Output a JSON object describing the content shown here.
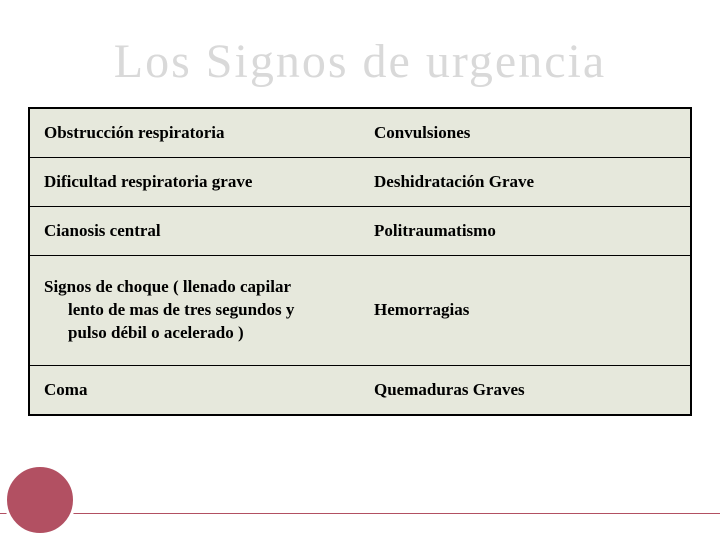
{
  "title": "Los Signos de urgencia",
  "table": {
    "type": "table",
    "background_color": "#e6e8dc",
    "border_color": "#000000",
    "text_color": "#000000",
    "font_weight": 700,
    "font_size_pt": 13,
    "column_widths_pct": [
      50,
      50
    ],
    "rows": [
      [
        "Obstrucción respiratoria",
        "Convulsiones"
      ],
      [
        "Dificultad respiratoria grave",
        "Deshidratación Grave"
      ],
      [
        "Cianosis central",
        "Politraumatismo"
      ],
      [
        "Signos de choque ( llenado capilar lento de mas de tres segundos y pulso débil o acelerado )",
        "Hemorragias"
      ],
      [
        "Coma",
        "Quemaduras Graves"
      ]
    ],
    "row4_line1": "Signos de choque ( llenado capilar",
    "row4_line2": "lento de mas de tres segundos y",
    "row4_line3": "pulso débil o acelerado )"
  },
  "decoration": {
    "circle_color": "#b25062",
    "circle_border": "#ffffff",
    "footer_line_color": "#b25062"
  }
}
